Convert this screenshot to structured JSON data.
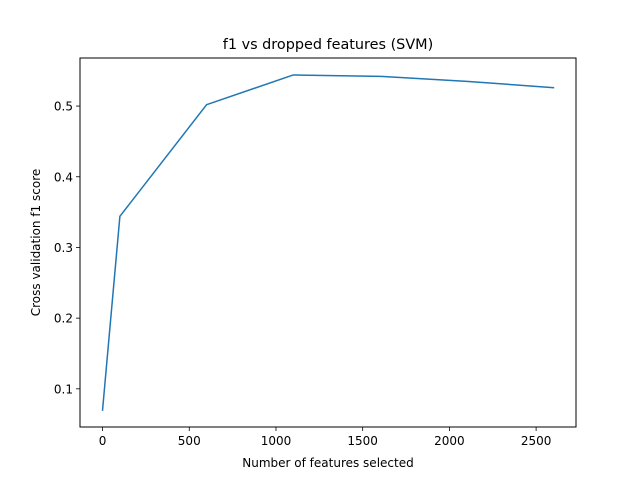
{
  "chart_data": {
    "type": "line",
    "title": "f1 vs dropped features (SVM)",
    "xlabel": "Number of features selected",
    "ylabel": "Cross validation f1 score",
    "xlim": [
      -130,
      2730
    ],
    "ylim": [
      0.046,
      0.568
    ],
    "xticks": [
      0,
      500,
      1000,
      1500,
      2000,
      2500
    ],
    "yticks": [
      0.1,
      0.2,
      0.3,
      0.4,
      0.5
    ],
    "grid": false,
    "series": [
      {
        "color": "#1f77b4",
        "x": [
          0,
          100,
          600,
          1100,
          1600,
          2100,
          2600
        ],
        "y": [
          0.07,
          0.344,
          0.502,
          0.544,
          0.542,
          0.535,
          0.526
        ]
      }
    ]
  }
}
